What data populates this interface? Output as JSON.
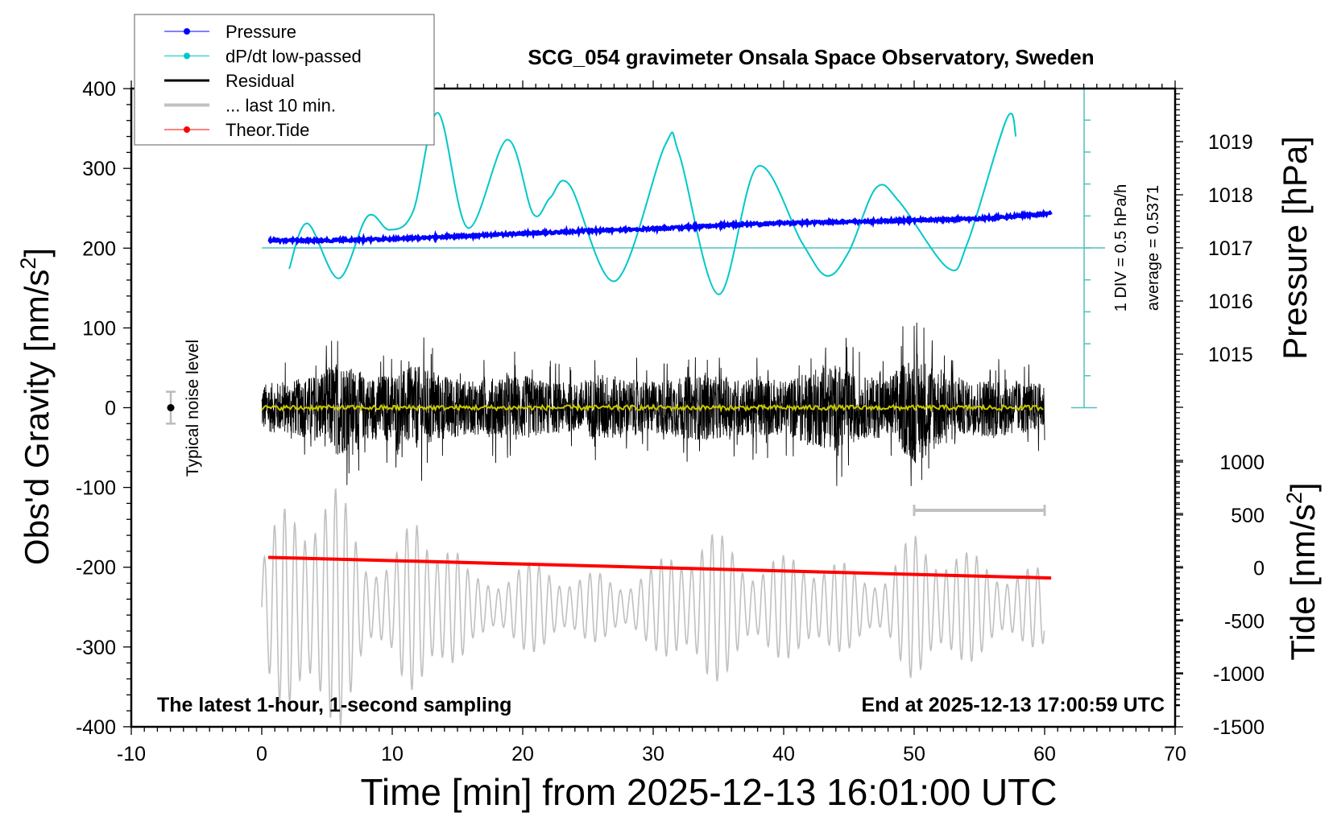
{
  "chart_data": {
    "type": "line",
    "title": "SCG_054 gravimeter Onsala Space Observatory, Sweden",
    "xlabel": "Time [min] from 2025-12-13 16:01:00 UTC",
    "ylabel_left": "Obs'd Gravity [nm/s",
    "ylabel_left_sup": "2",
    "ylabel_left_end": "]",
    "ylabel_right_top": "Pressure [hPa]",
    "ylabel_right_bottom": "Tide [nm/s",
    "ylabel_right_bottom_sup": "2",
    "ylabel_right_bottom_end": "]",
    "xlim": [
      -10,
      70
    ],
    "ylim_left": [
      -400,
      400
    ],
    "xticks": [
      "-10",
      "0",
      "10",
      "20",
      "30",
      "40",
      "50",
      "60",
      "70"
    ],
    "yticks_left": [
      "400",
      "300",
      "200",
      "100",
      "0",
      "-100",
      "-200",
      "-300",
      "-400"
    ],
    "yticks_pressure": [
      "1019",
      "1018",
      "1017",
      "1016",
      "1015"
    ],
    "yticks_tide": [
      "1000",
      "500",
      "0",
      "-500",
      "-1000",
      "-1500"
    ],
    "annotation_bottom_left": "The latest 1-hour, 1-second sampling",
    "annotation_bottom_right": "End at 2025-12-13 17:00:59 UTC",
    "noise_label": "Typical noise level",
    "noise_level": 20,
    "dpdt_scale_label": "1 DIV = 0.5 hPa/h",
    "dpdt_average_label": "average = 0.5371",
    "dpdt_average": 0.5371,
    "dpdt_div": 0.5,
    "legend": {
      "placement": "top-left",
      "items": [
        {
          "label": "Pressure",
          "color": "#0000ff",
          "marker": true
        },
        {
          "label": "dP/dt low-passed",
          "color": "#00c8c8",
          "marker": true
        },
        {
          "label": "Residual",
          "color": "#000000",
          "marker": false
        },
        {
          "label": "... last 10 min.",
          "color": "#c0c0c0",
          "marker": false
        },
        {
          "label": "Theor.Tide",
          "color": "#ff0000",
          "marker": true
        }
      ]
    },
    "series": [
      {
        "name": "Pressure",
        "unit": "hPa",
        "color": "#0000ff",
        "x": [
          0.5,
          5,
          10,
          15,
          20,
          25,
          30,
          35,
          40,
          45,
          50,
          55,
          58,
          60.5
        ],
        "y": [
          1017.14,
          1017.14,
          1017.17,
          1017.22,
          1017.27,
          1017.32,
          1017.36,
          1017.42,
          1017.47,
          1017.49,
          1017.52,
          1017.55,
          1017.6,
          1017.65
        ]
      },
      {
        "name": "dP/dt low-passed",
        "unit": "hPa/h",
        "color": "#00c8c8",
        "x": [
          2.1,
          3.5,
          5.9,
          8.1,
          9.8,
          11.6,
          13.5,
          15.8,
          18.8,
          20.8,
          22.1,
          23.6,
          27.1,
          30.9,
          32,
          35,
          38,
          41.4,
          43.3,
          45,
          47.1,
          48.9,
          52.6,
          54.1,
          57.1,
          57.8
        ],
        "y": [
          0.21,
          0.92,
          0.06,
          1.03,
          0.82,
          1.11,
          2.65,
          0.85,
          2.23,
          1.07,
          1.32,
          1.52,
          0.02,
          2.14,
          2.0,
          -0.19,
          1.81,
          0.62,
          0.1,
          0.48,
          1.48,
          1.25,
          0.22,
          0.62,
          2.56,
          2.28
        ]
      },
      {
        "name": "Residual",
        "unit": "nm/s2",
        "color": "#000000",
        "x_range": [
          0,
          60
        ],
        "envelope_x": [
          0,
          2,
          4,
          6,
          8,
          10,
          12,
          14,
          16,
          18,
          20,
          22,
          24,
          26,
          28,
          30,
          32,
          34,
          36,
          38,
          40,
          42,
          44,
          46,
          48,
          50,
          52,
          54,
          56,
          58,
          60
        ],
        "envelope_amplitude": [
          55,
          60,
          75,
          110,
          70,
          80,
          95,
          75,
          60,
          70,
          75,
          60,
          55,
          80,
          65,
          60,
          70,
          75,
          65,
          70,
          60,
          85,
          100,
          70,
          70,
          130,
          90,
          60,
          70,
          60,
          55
        ],
        "lowpass_color": "#c8c800",
        "lowpass_level": 0
      },
      {
        "name": "... last 10 min.",
        "unit": "nm/s2",
        "color": "#c0c0c0",
        "x_range": [
          0,
          60
        ],
        "center": -250,
        "envelope_x": [
          0,
          2,
          4,
          6,
          8,
          10,
          12,
          14,
          16,
          18,
          20,
          22,
          24,
          26,
          28,
          30,
          32,
          34,
          36,
          38,
          40,
          42,
          44,
          46,
          48,
          50,
          52,
          54,
          56,
          58,
          60
        ],
        "envelope_amplitude": [
          70,
          140,
          170,
          150,
          80,
          60,
          130,
          110,
          40,
          45,
          55,
          60,
          40,
          45,
          40,
          50,
          90,
          100,
          85,
          60,
          65,
          75,
          60,
          45,
          50,
          95,
          90,
          70,
          60,
          50,
          50
        ],
        "marker_range": [
          50,
          60
        ]
      },
      {
        "name": "Theor.Tide",
        "unit": "nm/s2",
        "color": "#ff0000",
        "x": [
          0.5,
          60.5
        ],
        "y": [
          100,
          -95
        ]
      }
    ]
  }
}
